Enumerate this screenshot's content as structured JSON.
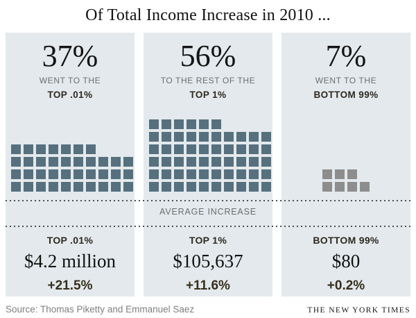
{
  "title": "Of Total Income Increase in 2010 ...",
  "colors": {
    "panel_background": "#e3e9ec",
    "slate_square": "#56707e",
    "gray_square": "#8d8d8d",
    "muted_text": "#6d6d6d",
    "dark_bold_text": "#2e2920",
    "dotted_line": "#4d4d4d"
  },
  "chart_data": {
    "type": "waffle",
    "title": "Of Total Income Increase in 2010 ...",
    "band_label": "AVERAGE INCREASE",
    "groups": [
      {
        "percent": 37,
        "percent_label": "37%",
        "header_line1": "WENT TO THE",
        "header_line2": "TOP .01%",
        "squares_total": 37,
        "rows": [
          7,
          10,
          10,
          10
        ],
        "square_color": "#56707e",
        "avg_group_label": "TOP .01%",
        "avg_increase_label": "$4.2 million",
        "avg_increase_value": 4200000,
        "pct_change_label": "+21.5%",
        "pct_change_value": 21.5
      },
      {
        "percent": 56,
        "percent_label": "56%",
        "header_line1": "TO THE REST OF THE",
        "header_line2": "TOP 1%",
        "squares_total": 56,
        "rows": [
          6,
          10,
          10,
          10,
          10,
          10
        ],
        "square_color": "#56707e",
        "avg_group_label": "TOP 1%",
        "avg_increase_label": "$105,637",
        "avg_increase_value": 105637,
        "pct_change_label": "+11.6%",
        "pct_change_value": 11.6
      },
      {
        "percent": 7,
        "percent_label": "7%",
        "header_line1": "WENT TO THE",
        "header_line2": "BOTTOM 99%",
        "squares_total": 7,
        "rows": [
          3,
          4
        ],
        "square_color": "#8d8d8d",
        "avg_group_label": "BOTTOM 99%",
        "avg_increase_label": "$80",
        "avg_increase_value": 80,
        "pct_change_label": "+0.2%",
        "pct_change_value": 0.2
      }
    ]
  },
  "footer": {
    "source": "Source: Thomas Piketty and Emmanuel Saez",
    "credit": "THE NEW YORK TIMES"
  }
}
